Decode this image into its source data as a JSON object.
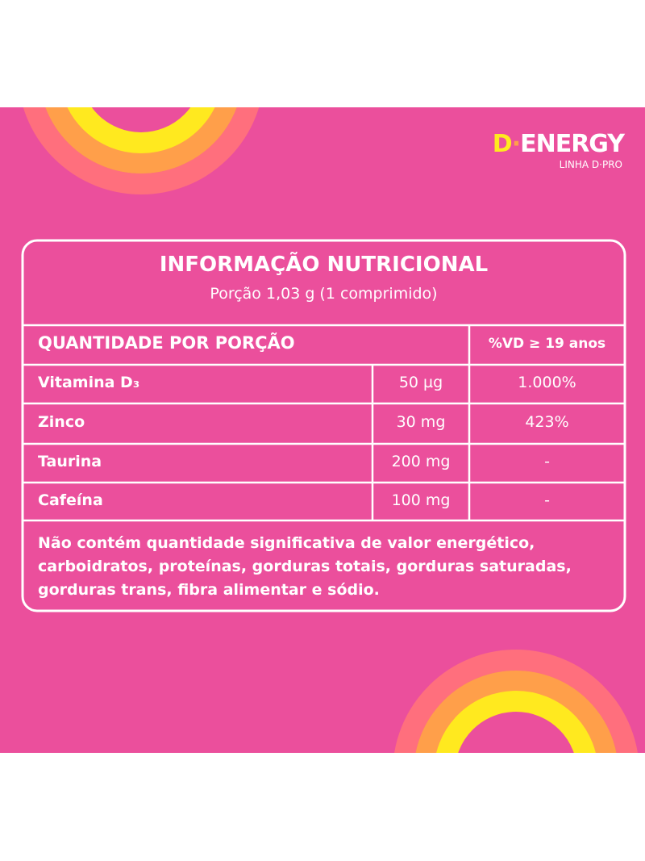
{
  "brand": {
    "initial": "D",
    "dot": "·",
    "name": "ENERGY",
    "line": "LINHA D·PRO"
  },
  "label": {
    "title": "INFORMAÇÃO NUTRICIONAL",
    "portion": "Porção 1,03 g (1 comprimido)",
    "header": {
      "amount": "QUANTIDADE POR PORÇÃO",
      "dv": "%VD ≥ 19 anos"
    },
    "rows": [
      [
        "Vitamina D₃",
        "50 µg",
        "1.000%"
      ],
      [
        "Zinco",
        "30 mg",
        "423%"
      ],
      [
        "Taurina",
        "200 mg",
        "-"
      ],
      [
        "Cafeína",
        "100 mg",
        "-"
      ]
    ],
    "note": [
      "Não contém quantidade significativa de valor energético,",
      "carboidratos, proteínas, gorduras totais, gorduras saturadas,",
      "gorduras trans, fibra alimentar e sódio."
    ]
  }
}
